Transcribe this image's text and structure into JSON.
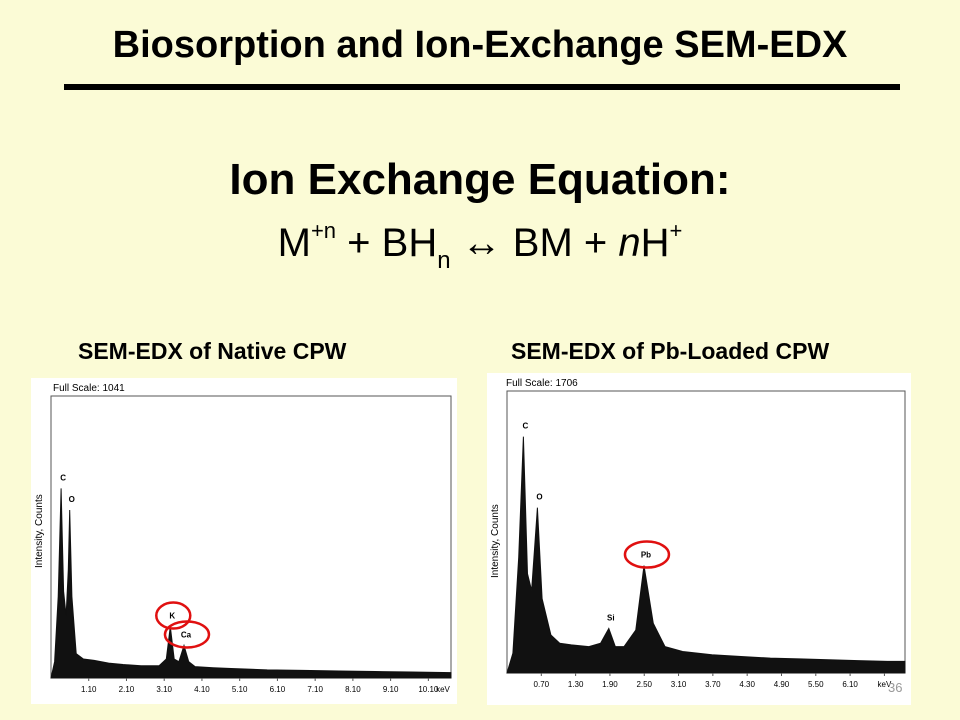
{
  "slide": {
    "title": "Biosorption and Ion-Exchange SEM-EDX",
    "eq_heading": "Ion Exchange Equation:",
    "eq": {
      "m": "M",
      "m_sup": "+n",
      "plus1": " + BH",
      "bh_sub": "n",
      "arrow": " ↔ BM + ",
      "n": "n",
      "h": "H",
      "h_sup": "+"
    },
    "page_number": "36"
  },
  "chart_data": [
    {
      "type": "line",
      "title": "SEM-EDX of Native CPW",
      "full_scale": "Full Scale: 1041",
      "ylabel": "Intensity, Counts",
      "xlabel": "keV",
      "xlim": [
        0,
        11.1
      ],
      "ylim": [
        0,
        1041
      ],
      "tick_labels": [
        "1.10",
        "2.10",
        "3.10",
        "4.10",
        "5.10",
        "6.10",
        "7.10",
        "8.10",
        "9.10",
        "10.10"
      ],
      "peaks": [
        {
          "label": "C",
          "x": 0.28,
          "y": 700
        },
        {
          "label": "O",
          "x": 0.52,
          "y": 620
        },
        {
          "label": "K",
          "x": 3.31,
          "y": 190,
          "circled": true
        },
        {
          "label": "Ca",
          "x": 3.69,
          "y": 120,
          "circled": true
        }
      ],
      "series": [
        {
          "x": [
            0,
            0.1,
            0.2,
            0.28,
            0.35,
            0.42,
            0.48,
            0.52,
            0.58,
            0.7,
            0.9,
            1.2,
            1.6,
            2.0,
            2.5,
            3.0,
            3.2,
            3.31,
            3.42,
            3.55,
            3.69,
            3.82,
            4.0,
            4.5,
            5,
            6,
            7,
            8,
            9,
            10,
            11.1
          ],
          "y": [
            0,
            60,
            300,
            700,
            320,
            230,
            400,
            620,
            300,
            90,
            70,
            65,
            55,
            50,
            45,
            45,
            70,
            190,
            70,
            60,
            120,
            60,
            42,
            38,
            35,
            30,
            28,
            26,
            24,
            22,
            20
          ]
        }
      ]
    },
    {
      "type": "line",
      "title": "SEM-EDX of Pb-Loaded CPW",
      "full_scale": "Full Scale: 1706",
      "ylabel": "Intensity, Counts",
      "xlabel": "keV",
      "xlim": [
        0,
        6.8
      ],
      "ylim": [
        0,
        1706
      ],
      "tick_labels": [
        "0.70",
        "1.30",
        "1.90",
        "2.50",
        "3.10",
        "3.70",
        "4.30",
        "4.90",
        "5.50",
        "6.10",
        "keV"
      ],
      "peaks": [
        {
          "label": "C",
          "x": 0.28,
          "y": 1430
        },
        {
          "label": "O",
          "x": 0.52,
          "y": 1000
        },
        {
          "label": "Si",
          "x": 1.74,
          "y": 270
        },
        {
          "label": "Pb",
          "x": 2.34,
          "y": 650,
          "circled": true
        }
      ],
      "series": [
        {
          "x": [
            0,
            0.1,
            0.2,
            0.28,
            0.35,
            0.42,
            0.48,
            0.52,
            0.6,
            0.75,
            0.9,
            1.1,
            1.4,
            1.6,
            1.74,
            1.85,
            2.0,
            2.2,
            2.34,
            2.5,
            2.7,
            3.0,
            3.5,
            4,
            4.5,
            5,
            5.5,
            6,
            6.5,
            6.8
          ],
          "y": [
            0,
            120,
            700,
            1430,
            600,
            500,
            800,
            1000,
            450,
            230,
            180,
            170,
            160,
            180,
            270,
            160,
            160,
            260,
            650,
            300,
            160,
            130,
            110,
            100,
            90,
            85,
            80,
            75,
            70,
            70
          ]
        }
      ]
    }
  ]
}
